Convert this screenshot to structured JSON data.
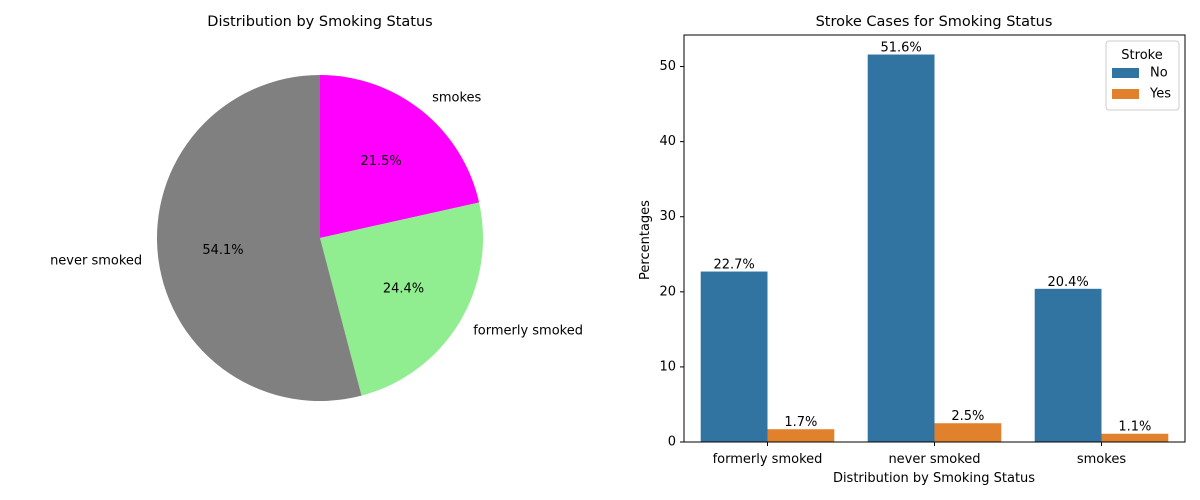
{
  "chart_data": [
    {
      "type": "pie",
      "title": "Distribution by Smoking Status",
      "slices": [
        {
          "label": "smokes",
          "value": 21.5,
          "display": "21.5%",
          "color": "#ff00ff"
        },
        {
          "label": "formerly smoked",
          "value": 24.4,
          "display": "24.4%",
          "color": "#90ee90"
        },
        {
          "label": "never smoked",
          "value": 54.1,
          "display": "54.1%",
          "color": "#808080"
        }
      ],
      "start_angle": 90,
      "direction": "clockwise"
    },
    {
      "type": "bar",
      "title": "Stroke Cases for Smoking Status",
      "xlabel": "Distribution by Smoking Status",
      "ylabel": "Percentages",
      "categories": [
        "formerly smoked",
        "never smoked",
        "smokes"
      ],
      "series": [
        {
          "name": "No",
          "values": [
            22.7,
            51.6,
            20.4
          ],
          "labels": [
            "22.7%",
            "51.6%",
            "20.4%"
          ],
          "color": "#3274a1"
        },
        {
          "name": "Yes",
          "values": [
            1.7,
            2.5,
            1.1
          ],
          "labels": [
            "1.7%",
            "2.5%",
            "1.1%"
          ],
          "color": "#e1812c"
        }
      ],
      "ylim": [
        0,
        54.2
      ],
      "yticks": [
        0,
        10,
        20,
        30,
        40,
        50
      ],
      "grid": false,
      "legend": {
        "title": "Stroke",
        "position": "top-right"
      }
    }
  ]
}
